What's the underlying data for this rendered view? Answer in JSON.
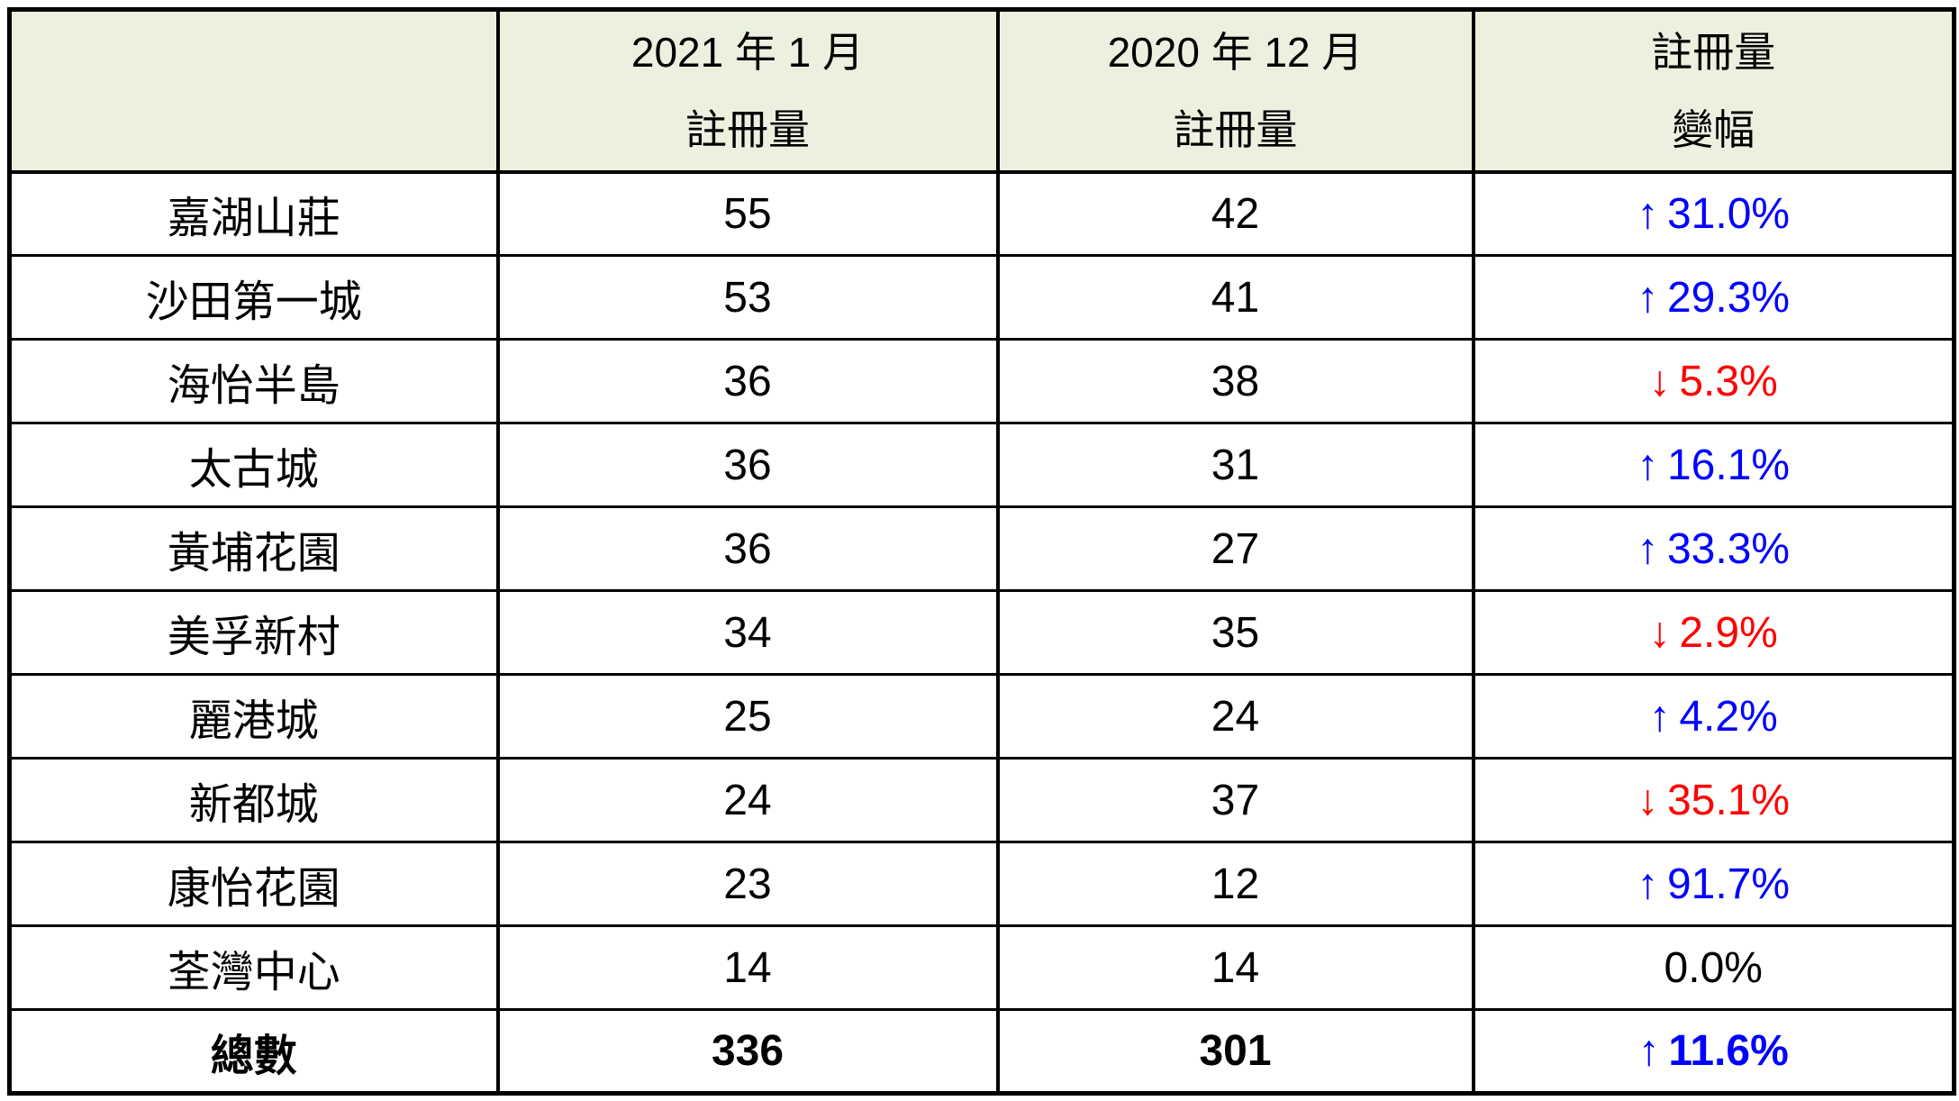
{
  "colors": {
    "increase": "#0000FF",
    "decrease": "#FF0000",
    "neutral": "#000000",
    "header_background": "#EBF1DE",
    "border": "#000000",
    "page_background": "#FFFFFF"
  },
  "table": {
    "columns": [
      {
        "line1": "",
        "line2": ""
      },
      {
        "line1": "2021 年 1 月",
        "line2": "註冊量"
      },
      {
        "line1": "2020 年 12 月",
        "line2": "註冊量"
      },
      {
        "line1": "註冊量",
        "line2": "變幅"
      }
    ],
    "rows": [
      {
        "name": "嘉湖山莊",
        "jan2021": "55",
        "dec2020": "42",
        "change": {
          "arrow": "↑",
          "value": "31.0%",
          "color": "#0000FF"
        },
        "bold": false
      },
      {
        "name": "沙田第一城",
        "jan2021": "53",
        "dec2020": "41",
        "change": {
          "arrow": "↑",
          "value": "29.3%",
          "color": "#0000FF"
        },
        "bold": false
      },
      {
        "name": "海怡半島",
        "jan2021": "36",
        "dec2020": "38",
        "change": {
          "arrow": "↓",
          "value": "5.3%",
          "color": "#FF0000"
        },
        "bold": false
      },
      {
        "name": "太古城",
        "jan2021": "36",
        "dec2020": "31",
        "change": {
          "arrow": "↑",
          "value": "16.1%",
          "color": "#0000FF"
        },
        "bold": false
      },
      {
        "name": "黃埔花園",
        "jan2021": "36",
        "dec2020": "27",
        "change": {
          "arrow": "↑",
          "value": "33.3%",
          "color": "#0000FF"
        },
        "bold": false
      },
      {
        "name": "美孚新村",
        "jan2021": "34",
        "dec2020": "35",
        "change": {
          "arrow": "↓",
          "value": "2.9%",
          "color": "#FF0000"
        },
        "bold": false
      },
      {
        "name": "麗港城",
        "jan2021": "25",
        "dec2020": "24",
        "change": {
          "arrow": "↑",
          "value": "4.2%",
          "color": "#0000FF"
        },
        "bold": false
      },
      {
        "name": "新都城",
        "jan2021": "24",
        "dec2020": "37",
        "change": {
          "arrow": "↓",
          "value": "35.1%",
          "color": "#FF0000"
        },
        "bold": false
      },
      {
        "name": "康怡花園",
        "jan2021": "23",
        "dec2020": "12",
        "change": {
          "arrow": "↑",
          "value": "91.7%",
          "color": "#0000FF"
        },
        "bold": false
      },
      {
        "name": "荃灣中心",
        "jan2021": "14",
        "dec2020": "14",
        "change": {
          "arrow": "",
          "value": "0.0%",
          "color": "#000000"
        },
        "bold": false
      },
      {
        "name": "總數",
        "jan2021": "336",
        "dec2020": "301",
        "change": {
          "arrow": "↑",
          "value": "11.6%",
          "color": "#0000FF"
        },
        "bold": true
      }
    ]
  },
  "chart_data": {
    "type": "table",
    "columns": [
      "",
      "2021 年 1 月 註冊量",
      "2020 年 12 月 註冊量",
      "註冊量 變幅"
    ],
    "rows": [
      {
        "estate": "嘉湖山莊",
        "jan_2021": 55,
        "dec_2020": 42,
        "change_pct": 31.0,
        "direction": "up"
      },
      {
        "estate": "沙田第一城",
        "jan_2021": 53,
        "dec_2020": 41,
        "change_pct": 29.3,
        "direction": "up"
      },
      {
        "estate": "海怡半島",
        "jan_2021": 36,
        "dec_2020": 38,
        "change_pct": -5.3,
        "direction": "down"
      },
      {
        "estate": "太古城",
        "jan_2021": 36,
        "dec_2020": 31,
        "change_pct": 16.1,
        "direction": "up"
      },
      {
        "estate": "黃埔花園",
        "jan_2021": 36,
        "dec_2020": 27,
        "change_pct": 33.3,
        "direction": "up"
      },
      {
        "estate": "美孚新村",
        "jan_2021": 34,
        "dec_2020": 35,
        "change_pct": -2.9,
        "direction": "down"
      },
      {
        "estate": "麗港城",
        "jan_2021": 25,
        "dec_2020": 24,
        "change_pct": 4.2,
        "direction": "up"
      },
      {
        "estate": "新都城",
        "jan_2021": 24,
        "dec_2020": 37,
        "change_pct": -35.1,
        "direction": "down"
      },
      {
        "estate": "康怡花園",
        "jan_2021": 23,
        "dec_2020": 12,
        "change_pct": 91.7,
        "direction": "up"
      },
      {
        "estate": "荃灣中心",
        "jan_2021": 14,
        "dec_2020": 14,
        "change_pct": 0.0,
        "direction": "flat"
      },
      {
        "estate": "總數",
        "jan_2021": 336,
        "dec_2020": 301,
        "change_pct": 11.6,
        "direction": "up",
        "is_total": true
      }
    ]
  }
}
